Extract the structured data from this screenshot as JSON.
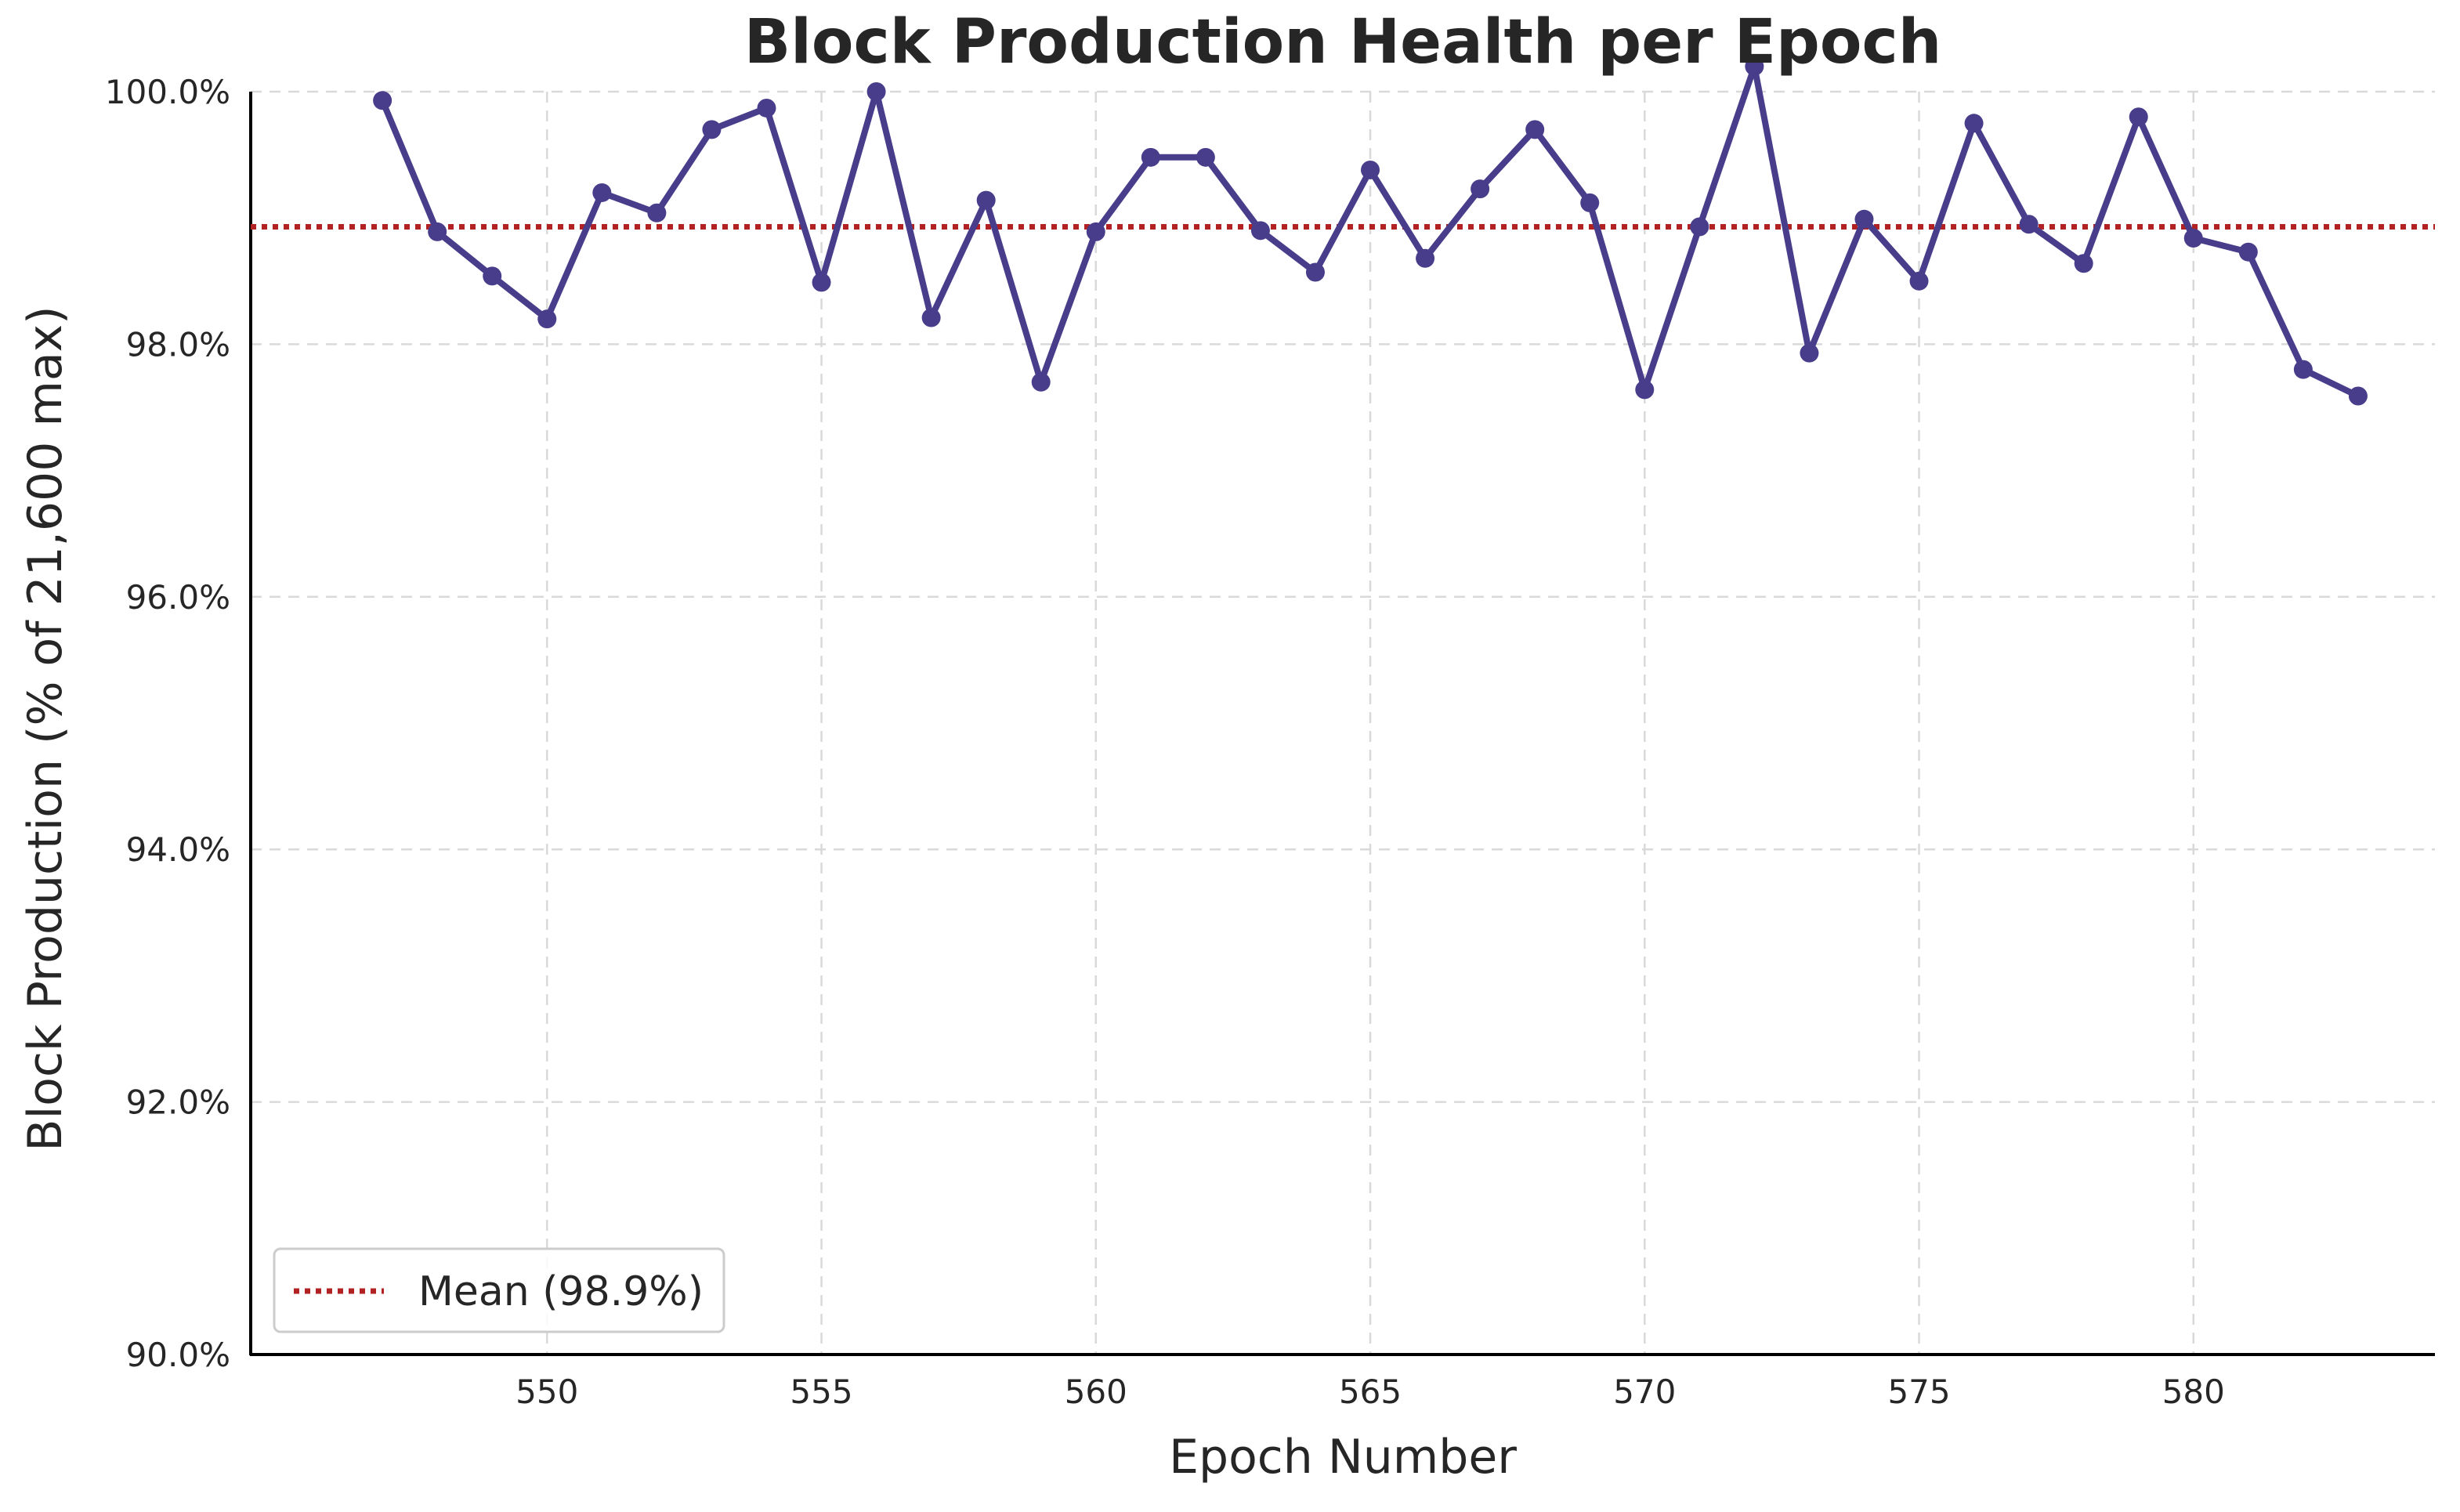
{
  "chart_data": {
    "type": "line",
    "title": "Block Production Health per Epoch",
    "xlabel": "Epoch Number",
    "ylabel": "Block Production (% of 21,600 max)",
    "xlim": [
      544.6,
      584.4
    ],
    "ylim": [
      90.0,
      100.0
    ],
    "xticks": [
      550,
      555,
      560,
      565,
      570,
      575,
      580
    ],
    "yticks": [
      90.0,
      92.0,
      94.0,
      96.0,
      98.0,
      100.0
    ],
    "ytick_labels": [
      "90.0%",
      "92.0%",
      "94.0%",
      "96.0%",
      "98.0%",
      "100.0%"
    ],
    "grid": true,
    "legend_position": "lower-left",
    "series": [
      {
        "name": "",
        "color": "#483D8B",
        "marker": "circle",
        "x": [
          547,
          548,
          549,
          550,
          551,
          552,
          553,
          554,
          555,
          556,
          557,
          558,
          559,
          560,
          561,
          562,
          563,
          564,
          565,
          566,
          567,
          568,
          569,
          570,
          571,
          572,
          573,
          574,
          575,
          576,
          577,
          578,
          579,
          580,
          581,
          582,
          583
        ],
        "y": [
          99.93,
          98.89,
          98.54,
          98.2,
          99.2,
          99.04,
          99.7,
          99.87,
          98.49,
          100.0,
          98.21,
          99.14,
          97.7,
          98.89,
          99.48,
          99.48,
          98.9,
          98.57,
          99.38,
          98.68,
          99.23,
          99.7,
          99.12,
          97.64,
          98.93,
          100.2,
          97.93,
          98.99,
          98.5,
          99.75,
          98.95,
          98.64,
          99.8,
          98.84,
          98.73,
          97.8,
          97.59
        ]
      }
    ],
    "mean_line": {
      "label": "Mean (98.9%)",
      "value": 98.93,
      "color": "#B22222",
      "style": "dotted"
    }
  }
}
